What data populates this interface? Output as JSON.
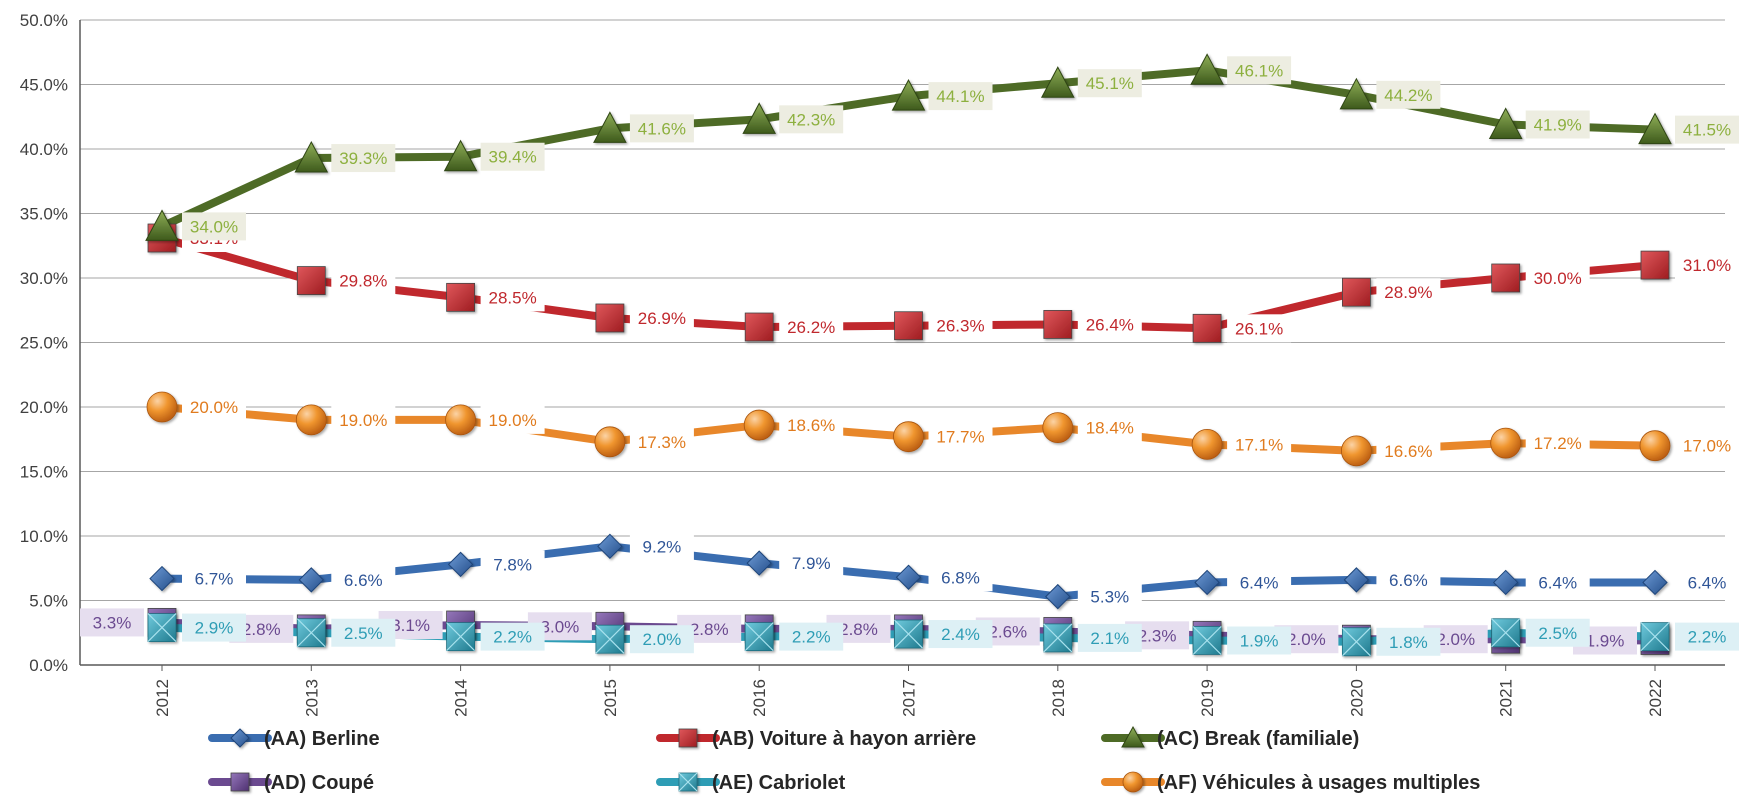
{
  "chart_data": {
    "type": "line",
    "title": "",
    "xlabel": "",
    "ylabel": "",
    "categories": [
      "2012",
      "2013",
      "2014",
      "2015",
      "2016",
      "2017",
      "2018",
      "2019",
      "2020",
      "2021",
      "2022"
    ],
    "ylim": [
      0,
      50
    ],
    "yticks": [
      0,
      5,
      10,
      15,
      20,
      25,
      30,
      35,
      40,
      45,
      50
    ],
    "ytick_labels": [
      "0.0%",
      "5.0%",
      "10.0%",
      "15.0%",
      "20.0%",
      "25.0%",
      "30.0%",
      "35.0%",
      "40.0%",
      "45.0%",
      "50.0%"
    ],
    "grid": "horizontal",
    "legend_position": "bottom",
    "series": [
      {
        "name": "(AA) Berline",
        "marker": "diamond",
        "color": "#3A6DB0",
        "label_color": "#2F5597",
        "label_bg": "#ffffff",
        "values": [
          6.7,
          6.6,
          7.8,
          9.2,
          7.9,
          6.8,
          5.3,
          6.4,
          6.6,
          6.4,
          6.4
        ],
        "labels": [
          "6.7%",
          "6.6%",
          "7.8%",
          "9.2%",
          "7.9%",
          "6.8%",
          "5.3%",
          "6.4%",
          "6.6%",
          "6.4%",
          "6.4%"
        ]
      },
      {
        "name": "(AB) Voiture à hayon arrière",
        "marker": "square",
        "color": "#C0282D",
        "label_color": "#C0282D",
        "label_bg": "#ffffff",
        "values": [
          33.1,
          29.8,
          28.5,
          26.9,
          26.2,
          26.3,
          26.4,
          26.1,
          28.9,
          30.0,
          31.0
        ],
        "labels": [
          "33.1%",
          "29.8%",
          "28.5%",
          "26.9%",
          "26.2%",
          "26.3%",
          "26.4%",
          "26.1%",
          "28.9%",
          "30.0%",
          "31.0%"
        ]
      },
      {
        "name": "(AC) Break (familiale)",
        "marker": "triangle",
        "color": "#4E6B26",
        "label_color": "#8DB03F",
        "label_bg": "#EDEDE1",
        "values": [
          34.0,
          39.3,
          39.4,
          41.6,
          42.3,
          44.1,
          45.1,
          46.1,
          44.2,
          41.9,
          41.5
        ],
        "labels": [
          "34.0%",
          "39.3%",
          "39.4%",
          "41.6%",
          "42.3%",
          "44.1%",
          "45.1%",
          "46.1%",
          "44.2%",
          "41.9%",
          "41.5%"
        ]
      },
      {
        "name": "(AD) Coupé",
        "marker": "square",
        "color": "#6B4A90",
        "label_color": "#6B4A90",
        "label_bg": "#E6DEEF",
        "values": [
          3.3,
          2.8,
          3.1,
          3.0,
          2.8,
          2.8,
          2.6,
          2.3,
          2.0,
          2.0,
          1.9
        ],
        "labels": [
          "3.3%",
          "2.8%",
          "3.1%",
          "3.0%",
          "2.8%",
          "2.8%",
          "2.6%",
          "2.3%",
          "2.0%",
          "2.0%",
          "1.9%"
        ]
      },
      {
        "name": "(AE) Cabriolet",
        "marker": "xsquare",
        "color": "#2E9DB5",
        "label_color": "#2E9DB5",
        "label_bg": "#DDF0F5",
        "values": [
          2.9,
          2.5,
          2.2,
          2.0,
          2.2,
          2.4,
          2.1,
          1.9,
          1.8,
          2.5,
          2.2
        ],
        "labels": [
          "2.9%",
          "2.5%",
          "2.2%",
          "2.0%",
          "2.2%",
          "2.4%",
          "2.1%",
          "1.9%",
          "1.8%",
          "2.5%",
          "2.2%"
        ]
      },
      {
        "name": "(AF) Véhicules à usages multiples",
        "marker": "circle",
        "color": "#E8872A",
        "label_color": "#E07B1E",
        "label_bg": "#ffffff",
        "values": [
          20.0,
          19.0,
          19.0,
          17.3,
          18.6,
          17.7,
          18.4,
          17.1,
          16.6,
          17.2,
          17.0
        ],
        "labels": [
          "20.0%",
          "19.0%",
          "19.0%",
          "17.3%",
          "18.6%",
          "17.7%",
          "18.4%",
          "17.1%",
          "16.6%",
          "17.2%",
          "17.0%"
        ]
      }
    ]
  }
}
